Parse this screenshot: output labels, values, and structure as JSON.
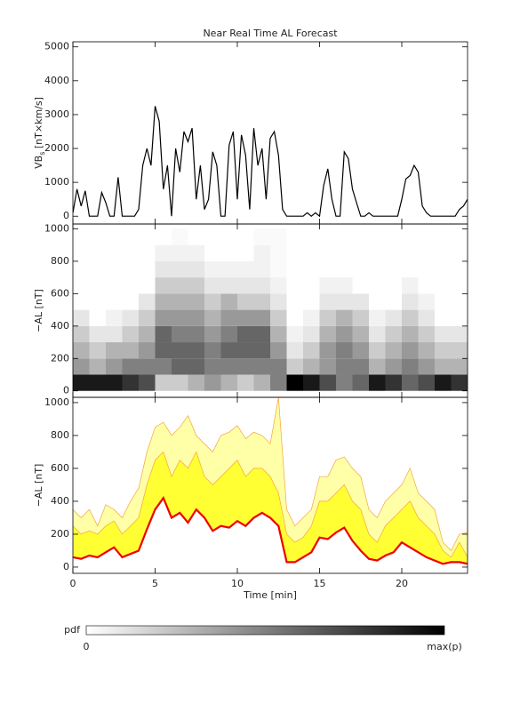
{
  "chart_data": [
    {
      "type": "line",
      "title": "Near Real Time AL Forecast",
      "ylabel": "VB",
      "ylabel_sub": "s",
      "ylabel_unit": " [nT×km/s]",
      "color": "#000000",
      "xlim": [
        0,
        24
      ],
      "ylim": [
        -230,
        5150
      ],
      "xticks": [
        0,
        5,
        10,
        15,
        20
      ],
      "xticklabels": false,
      "yticks": [
        0,
        1000,
        2000,
        3000,
        4000,
        5000
      ],
      "x": [
        0,
        0.25,
        0.5,
        0.75,
        1,
        1.25,
        1.5,
        1.75,
        2,
        2.25,
        2.5,
        2.75,
        3,
        3.25,
        3.5,
        3.75,
        4,
        4.25,
        4.5,
        4.75,
        5,
        5.25,
        5.5,
        5.75,
        6,
        6.25,
        6.5,
        6.75,
        7,
        7.25,
        7.5,
        7.75,
        8,
        8.25,
        8.5,
        8.75,
        9,
        9.25,
        9.5,
        9.75,
        10,
        10.25,
        10.5,
        10.75,
        11,
        11.25,
        11.5,
        11.75,
        12,
        12.25,
        12.5,
        12.75,
        13,
        13.25,
        13.5,
        13.75,
        14,
        14.25,
        14.5,
        14.75,
        15,
        15.25,
        15.5,
        15.75,
        16,
        16.25,
        16.5,
        16.75,
        17,
        17.25,
        17.5,
        17.75,
        18,
        18.25,
        18.5,
        18.75,
        19,
        19.25,
        19.5,
        19.75,
        20,
        20.25,
        20.5,
        20.75,
        21,
        21.25,
        21.5,
        21.75,
        22,
        22.25,
        22.5,
        22.75,
        23,
        23.25,
        23.5,
        23.75,
        24
      ],
      "values": [
        100,
        800,
        300,
        750,
        0,
        0,
        0,
        700,
        400,
        0,
        0,
        1150,
        0,
        0,
        0,
        0,
        200,
        1500,
        2000,
        1500,
        3250,
        2800,
        800,
        1500,
        0,
        2000,
        1300,
        2500,
        2200,
        2600,
        500,
        1500,
        200,
        500,
        1900,
        1500,
        0,
        0,
        2100,
        2500,
        500,
        2400,
        1800,
        200,
        2600,
        1500,
        2000,
        500,
        2300,
        2500,
        1800,
        200,
        0,
        0,
        0,
        0,
        0,
        100,
        0,
        100,
        0,
        900,
        1400,
        500,
        0,
        0,
        1900,
        1700,
        800,
        400,
        0,
        0,
        100,
        0,
        0,
        0,
        0,
        0,
        0,
        0,
        500,
        1100,
        1200,
        1500,
        1300,
        300,
        100,
        0,
        0,
        0,
        0,
        0,
        0,
        0,
        200,
        300,
        500
      ]
    },
    {
      "type": "heatmap",
      "ylabel": "−AL [nT]",
      "xlim": [
        0,
        24
      ],
      "ylim": [
        -40,
        1030
      ],
      "xticks": [
        0,
        5,
        10,
        15,
        20
      ],
      "xticklabels": false,
      "yticks": [
        0,
        200,
        400,
        600,
        800,
        1000
      ],
      "xbins": [
        0,
        1,
        2,
        3,
        4,
        5,
        6,
        7,
        8,
        9,
        10,
        11,
        12,
        13,
        14,
        15,
        16,
        17,
        18,
        19,
        20,
        21,
        22,
        23,
        24
      ],
      "ybins": [
        0,
        100,
        200,
        300,
        400,
        500,
        600,
        700,
        800,
        900,
        1000
      ],
      "z": [
        [
          0.9,
          0.4,
          0.3,
          0.2,
          0.1,
          0,
          0,
          0,
          0,
          0
        ],
        [
          0.9,
          0.3,
          0.2,
          0.1,
          0,
          0,
          0,
          0,
          0,
          0
        ],
        [
          0.9,
          0.4,
          0.3,
          0.1,
          0.05,
          0,
          0,
          0,
          0,
          0
        ],
        [
          0.8,
          0.5,
          0.3,
          0.2,
          0.1,
          0,
          0,
          0,
          0,
          0
        ],
        [
          0.7,
          0.5,
          0.4,
          0.3,
          0.2,
          0.1,
          0,
          0,
          0,
          0
        ],
        [
          0.2,
          0.5,
          0.6,
          0.6,
          0.4,
          0.3,
          0.2,
          0.1,
          0.05,
          0
        ],
        [
          0.2,
          0.6,
          0.6,
          0.5,
          0.4,
          0.3,
          0.2,
          0.1,
          0.05,
          0.02
        ],
        [
          0.3,
          0.6,
          0.6,
          0.5,
          0.4,
          0.3,
          0.2,
          0.1,
          0.05,
          0
        ],
        [
          0.4,
          0.5,
          0.5,
          0.4,
          0.3,
          0.2,
          0.1,
          0.05,
          0,
          0
        ],
        [
          0.3,
          0.5,
          0.6,
          0.5,
          0.4,
          0.3,
          0.1,
          0.05,
          0,
          0
        ],
        [
          0.2,
          0.5,
          0.6,
          0.6,
          0.4,
          0.2,
          0.1,
          0.05,
          0,
          0
        ],
        [
          0.3,
          0.5,
          0.6,
          0.6,
          0.4,
          0.2,
          0.1,
          0.05,
          0.05,
          0.02
        ],
        [
          0.5,
          0.5,
          0.4,
          0.3,
          0.2,
          0.1,
          0.05,
          0.02,
          0.02,
          0.02
        ],
        [
          1,
          0.2,
          0.1,
          0.05,
          0,
          0,
          0,
          0,
          0,
          0
        ],
        [
          0.9,
          0.3,
          0.2,
          0.1,
          0.05,
          0,
          0,
          0,
          0,
          0
        ],
        [
          0.7,
          0.4,
          0.4,
          0.3,
          0.2,
          0.1,
          0.05,
          0,
          0,
          0
        ],
        [
          0.5,
          0.5,
          0.5,
          0.4,
          0.3,
          0.1,
          0.05,
          0,
          0,
          0
        ],
        [
          0.6,
          0.5,
          0.4,
          0.3,
          0.2,
          0.1,
          0,
          0,
          0,
          0
        ],
        [
          0.9,
          0.3,
          0.2,
          0.1,
          0.05,
          0,
          0,
          0,
          0,
          0
        ],
        [
          0.8,
          0.4,
          0.3,
          0.2,
          0.1,
          0,
          0,
          0,
          0,
          0
        ],
        [
          0.6,
          0.5,
          0.4,
          0.3,
          0.2,
          0.1,
          0.05,
          0,
          0,
          0
        ],
        [
          0.7,
          0.4,
          0.3,
          0.2,
          0.1,
          0.05,
          0,
          0,
          0,
          0
        ],
        [
          0.9,
          0.3,
          0.2,
          0.1,
          0,
          0,
          0,
          0,
          0,
          0
        ],
        [
          0.8,
          0.3,
          0.2,
          0.1,
          0,
          0,
          0,
          0,
          0,
          0
        ]
      ]
    },
    {
      "type": "band",
      "ylabel": "−AL [nT]",
      "xlabel": "Time [min]",
      "xlim": [
        0,
        24
      ],
      "ylim": [
        -38,
        1032
      ],
      "xticks": [
        0,
        5,
        10,
        15,
        20
      ],
      "xticklabels": true,
      "yticks": [
        0,
        200,
        400,
        600,
        800,
        1000
      ],
      "x": [
        0,
        0.5,
        1,
        1.5,
        2,
        2.5,
        3,
        3.5,
        4,
        4.5,
        5,
        5.5,
        6,
        6.5,
        7,
        7.5,
        8,
        8.5,
        9,
        9.5,
        10,
        10.5,
        11,
        11.5,
        12,
        12.5,
        13,
        13.5,
        14,
        14.5,
        15,
        15.5,
        16,
        16.5,
        17,
        17.5,
        18,
        18.5,
        19,
        19.5,
        20,
        20.5,
        21,
        21.5,
        22,
        22.5,
        23,
        23.5,
        24
      ],
      "series": [
        {
          "color": "#ee0000",
          "values": [
            60,
            50,
            70,
            60,
            90,
            120,
            60,
            80,
            100,
            230,
            350,
            420,
            300,
            330,
            270,
            350,
            300,
            220,
            250,
            240,
            280,
            250,
            300,
            330,
            300,
            250,
            30,
            30,
            60,
            90,
            180,
            170,
            210,
            240,
            160,
            100,
            50,
            40,
            70,
            90,
            150,
            120,
            90,
            60,
            40,
            20,
            30,
            30,
            20
          ]
        },
        {
          "color": "#ffff33",
          "values": [
            250,
            200,
            220,
            200,
            250,
            280,
            200,
            250,
            300,
            500,
            650,
            700,
            550,
            650,
            600,
            700,
            550,
            500,
            550,
            600,
            650,
            550,
            600,
            600,
            550,
            450,
            200,
            150,
            180,
            250,
            400,
            400,
            450,
            500,
            400,
            350,
            200,
            150,
            250,
            300,
            350,
            400,
            300,
            250,
            200,
            100,
            60,
            150,
            60
          ]
        },
        {
          "color": "#ffffa8",
          "values": [
            350,
            300,
            350,
            250,
            380,
            350,
            300,
            400,
            480,
            700,
            850,
            880,
            800,
            850,
            920,
            800,
            750,
            700,
            800,
            820,
            860,
            780,
            820,
            800,
            750,
            1030,
            350,
            250,
            300,
            350,
            550,
            550,
            650,
            670,
            600,
            550,
            350,
            300,
            400,
            450,
            500,
            600,
            450,
            400,
            350,
            150,
            100,
            200,
            210
          ]
        }
      ]
    },
    {
      "type": "colorbar",
      "label": "pdf",
      "min_label": "0",
      "max_label": "max(p)"
    }
  ]
}
